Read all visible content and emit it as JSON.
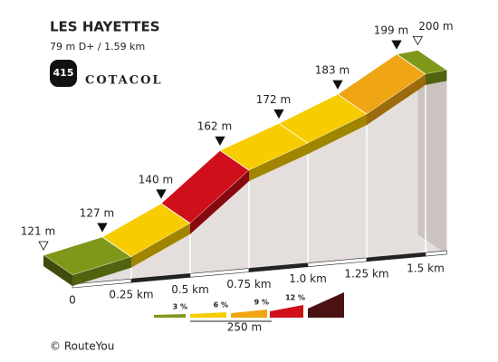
{
  "chart_data": {
    "type": "profile",
    "title": "LES HAYETTES",
    "subtitle": "79 m D+ / 1.59 km",
    "badge": "415",
    "brand": "COTACOL",
    "x": [
      0,
      0.25,
      0.5,
      0.75,
      1.0,
      1.25,
      1.5,
      1.59
    ],
    "values": [
      121,
      127,
      140,
      162,
      172,
      183,
      199,
      200
    ],
    "value_labels": [
      "121 m",
      "127 m",
      "140 m",
      "162 m",
      "172 m",
      "183 m",
      "199 m",
      "200 m"
    ],
    "segment_colors": [
      "#7f9819",
      "#f7cc00",
      "#cf0f1a",
      "#f7cc00",
      "#f7cc00",
      "#f0a514",
      "#7f9819"
    ],
    "xticks": [
      0,
      {
        "value": 0.25,
        "label": "0.25 km"
      },
      {
        "value": 0.5,
        "label": "0.5 km"
      },
      {
        "value": 0.75,
        "label": "0.75 km"
      },
      {
        "value": 1.0,
        "label": "1.0 km"
      },
      {
        "value": 1.25,
        "label": "1.25 km"
      },
      {
        "value": 1.5,
        "label": "1.5 km"
      }
    ],
    "legend_colors": [
      "#7f9819",
      "#f7cc00",
      "#f0a514",
      "#cf0f1a",
      "#4a1212"
    ],
    "legend_labels": [
      "3 %",
      "6 %",
      "9 %",
      "12 %"
    ],
    "legend_scale": "250 m",
    "footer": "© RouteYou"
  }
}
